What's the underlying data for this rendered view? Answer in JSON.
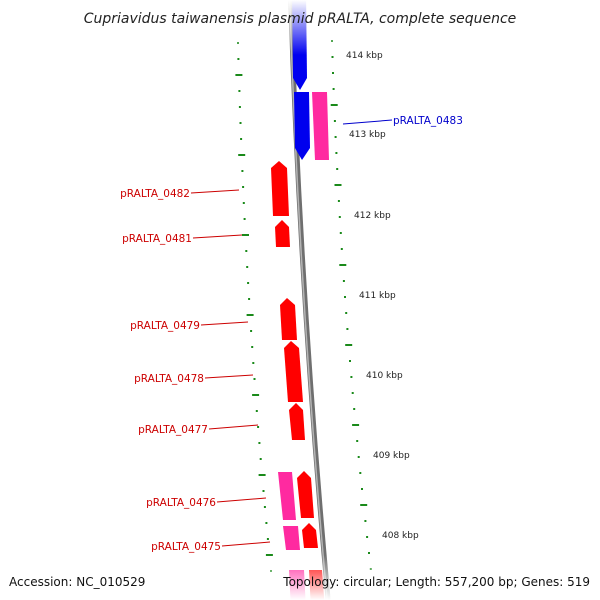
{
  "title": "Cupriavidus taiwanensis plasmid pRALTA, complete sequence",
  "footer": {
    "accession": "Accession: NC_010529",
    "topology": "Topology: circular; Length: 557,200 bp; Genes: 519"
  },
  "colors": {
    "backbone": "#8a8a8a",
    "tick": "#1a8a1a",
    "forward_gene": "#ff0000",
    "reverse_gene": "#0000ff",
    "pink_gene": "#ff2aa0",
    "selected_label": "#0000cc",
    "gene_label": "#cc0000"
  },
  "scale": {
    "ticks": [
      {
        "label": "414 kbp"
      },
      {
        "label": "413 kbp"
      },
      {
        "label": "412 kbp"
      },
      {
        "label": "411 kbp"
      },
      {
        "label": "410 kbp"
      },
      {
        "label": "409 kbp"
      },
      {
        "label": "408 kbp"
      }
    ]
  },
  "genes": [
    {
      "name": "pRALTA_0483",
      "highlighted": true
    },
    {
      "name": "pRALTA_0482",
      "highlighted": false
    },
    {
      "name": "pRALTA_0481",
      "highlighted": false
    },
    {
      "name": "pRALTA_0479",
      "highlighted": false
    },
    {
      "name": "pRALTA_0478",
      "highlighted": false
    },
    {
      "name": "pRALTA_0477",
      "highlighted": false
    },
    {
      "name": "pRALTA_0476",
      "highlighted": false
    },
    {
      "name": "pRALTA_0475",
      "highlighted": false
    }
  ]
}
